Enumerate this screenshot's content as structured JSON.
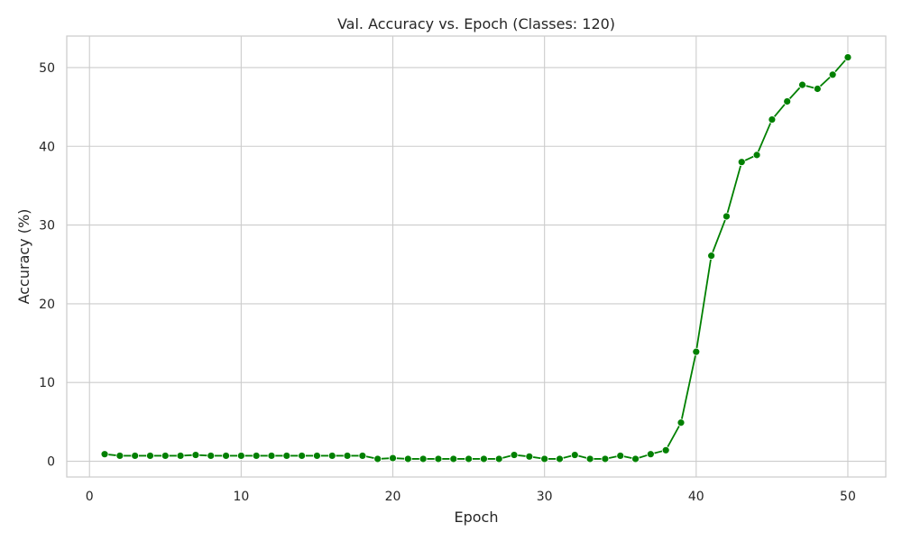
{
  "chart_data": {
    "type": "line",
    "title": "Val. Accuracy vs. Epoch (Classes: 120)",
    "xlabel": "Epoch",
    "ylabel": "Accuracy (%)",
    "xlim": [
      -1.5,
      52.5
    ],
    "ylim": [
      -2.0,
      54.0
    ],
    "xticks": [
      0,
      10,
      20,
      30,
      40,
      50
    ],
    "yticks": [
      0,
      10,
      20,
      30,
      40,
      50
    ],
    "grid": true,
    "legend": "none",
    "colors": {
      "line": "#008000",
      "marker": "#008000",
      "grid": "#cccccc",
      "spine": "#cccccc"
    },
    "series": [
      {
        "x": [
          1,
          2,
          3,
          4,
          5,
          6,
          7,
          8,
          9,
          10,
          11,
          12,
          13,
          14,
          15,
          16,
          17,
          18,
          19,
          20,
          21,
          22,
          23,
          24,
          25,
          26,
          27,
          28,
          29,
          30,
          31,
          32,
          33,
          34,
          35,
          36,
          37,
          38,
          39,
          40,
          41,
          42,
          43,
          44,
          45,
          46,
          47,
          48,
          49,
          50
        ],
        "values": [
          0.9,
          0.7,
          0.7,
          0.7,
          0.7,
          0.7,
          0.8,
          0.7,
          0.7,
          0.7,
          0.7,
          0.7,
          0.7,
          0.7,
          0.7,
          0.7,
          0.7,
          0.7,
          0.3,
          0.4,
          0.3,
          0.3,
          0.3,
          0.3,
          0.3,
          0.3,
          0.3,
          0.8,
          0.6,
          0.3,
          0.3,
          0.8,
          0.3,
          0.3,
          0.7,
          0.3,
          0.9,
          1.4,
          4.9,
          13.9,
          26.1,
          31.1,
          38.0,
          38.9,
          43.4,
          45.7,
          47.8,
          47.3,
          49.1,
          51.3
        ]
      }
    ]
  }
}
